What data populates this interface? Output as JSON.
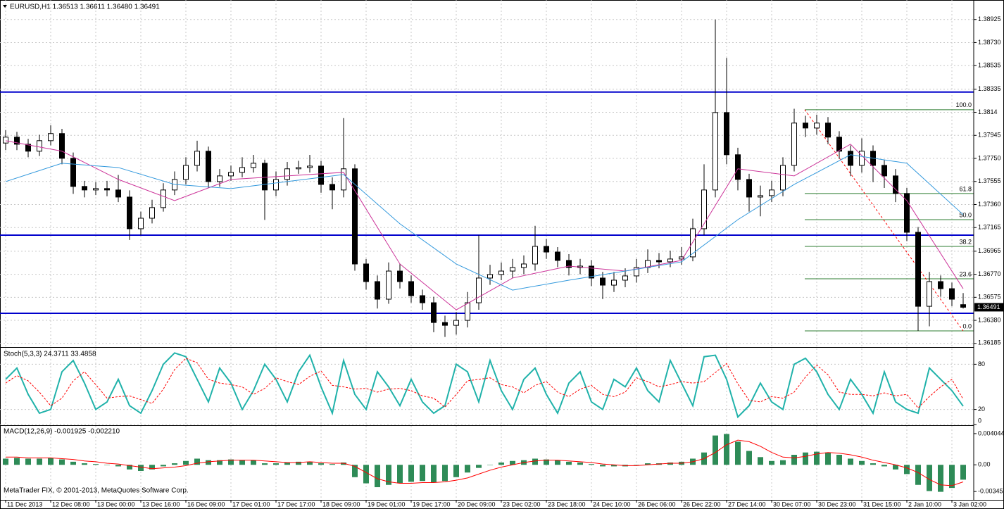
{
  "chart_data": [
    {
      "type": "candlestick",
      "title": "EURUSD,H1  1.36513 1.36611 1.36480 1.36491",
      "categories": [
        "11 Dec 2013",
        null,
        null,
        null,
        "12 Dec 08:00",
        null,
        null,
        null,
        "13 Dec 00:00",
        null,
        null,
        null,
        "13 Dec 16:00",
        null,
        null,
        null,
        "16 Dec 09:00",
        null,
        null,
        null,
        "17 Dec 01:00",
        null,
        null,
        null,
        "17 Dec 17:00",
        null,
        null,
        null,
        "18 Dec 09:00",
        null,
        null,
        null,
        "19 Dec 01:00",
        null,
        null,
        null,
        "19 Dec 17:00",
        null,
        null,
        null,
        "20 Dec 09:00",
        null,
        null,
        null,
        "23 Dec 02:00",
        null,
        null,
        null,
        "23 Dec 18:00",
        null,
        null,
        null,
        "24 Dec 10:00",
        null,
        null,
        null,
        "26 Dec 06:00",
        null,
        null,
        null,
        "26 Dec 22:00",
        null,
        null,
        null,
        "27 Dec 14:00",
        null,
        null,
        null,
        "30 Dec 07:00",
        null,
        null,
        null,
        "30 Dec 23:00",
        null,
        null,
        null,
        "31 Dec 15:00",
        null,
        null,
        null,
        "2 Jan 10:00",
        null,
        null,
        null,
        "3 Jan 02:00",
        null
      ],
      "open": [
        1.3788,
        1.3793,
        1.3787,
        1.37811,
        1.379,
        1.3796,
        1.37751,
        1.37513,
        1.37483,
        1.37495,
        1.37483,
        1.37423,
        1.37155,
        1.37244,
        1.37334,
        1.37483,
        1.37572,
        1.37691,
        1.37811,
        1.37554,
        1.37602,
        1.37632,
        1.37673,
        1.37709,
        1.37483,
        1.37572,
        1.37662,
        1.37673,
        1.37685,
        1.3753,
        1.37483,
        1.37662,
        1.36857,
        1.36708,
        1.36559,
        1.36797,
        1.36708,
        1.36589,
        1.36529,
        1.36362,
        1.36338,
        1.3638,
        1.36529,
        1.36738,
        1.36768,
        1.36797,
        1.36827,
        1.36857,
        1.37006,
        1.36958,
        1.36887,
        1.36827,
        1.36839,
        1.36738,
        1.36678,
        1.3672,
        1.36756,
        1.36827,
        1.36887,
        1.36875,
        1.36899,
        1.36917,
        1.37155,
        1.37483,
        1.38138,
        1.37781,
        1.37572,
        1.37423,
        1.37435,
        1.37483,
        1.37691,
        1.38049,
        1.38007,
        1.38049,
        1.3793,
        1.37811,
        1.37691,
        1.37811,
        1.37691,
        1.37602,
        1.37453,
        1.37125,
        1.36499,
        1.36708,
        1.36648,
        1.36513
      ],
      "high": [
        1.3799,
        1.37975,
        1.37915,
        1.3795,
        1.3803,
        1.38,
        1.378,
        1.3756,
        1.3755,
        1.3756,
        1.3761,
        1.3748,
        1.373,
        1.374,
        1.3754,
        1.3764,
        1.3776,
        1.379,
        1.3785,
        1.3766,
        1.3769,
        1.3776,
        1.3778,
        1.3774,
        1.3764,
        1.3772,
        1.3773,
        1.3778,
        1.3773,
        1.3759,
        1.38091,
        1.377,
        1.369,
        1.3676,
        1.3687,
        1.3686,
        1.3676,
        1.3664,
        1.3658,
        1.3642,
        1.3645,
        1.3662,
        1.371,
        1.3685,
        1.3687,
        1.369,
        1.3693,
        1.3718,
        1.3707,
        1.37,
        1.3694,
        1.369,
        1.3689,
        1.3679,
        1.3679,
        1.3682,
        1.369,
        1.3698,
        1.3695,
        1.3697,
        1.37,
        1.3724,
        1.377,
        1.38925,
        1.386,
        1.3784,
        1.3762,
        1.3752,
        1.3756,
        1.3776,
        1.3817,
        1.3811,
        1.3812,
        1.381,
        1.3798,
        1.3786,
        1.3792,
        1.3786,
        1.3774,
        1.3766,
        1.375,
        1.3717,
        1.3679,
        1.3676,
        1.367,
        1.36611
      ],
      "low": [
        1.3782,
        1.3782,
        1.3776,
        1.3777,
        1.3786,
        1.377,
        1.3745,
        1.3742,
        1.3744,
        1.3743,
        1.3738,
        1.3706,
        1.371,
        1.372,
        1.373,
        1.3744,
        1.3753,
        1.3764,
        1.375,
        1.3751,
        1.3756,
        1.3759,
        1.3763,
        1.3723,
        1.3743,
        1.3752,
        1.3762,
        1.3763,
        1.3746,
        1.3732,
        1.3742,
        1.368,
        1.3664,
        1.3648,
        1.3652,
        1.3665,
        1.3653,
        1.3647,
        1.3628,
        1.3624,
        1.3626,
        1.3632,
        1.3647,
        1.3668,
        1.3672,
        1.3674,
        1.3677,
        1.368,
        1.369,
        1.3683,
        1.3676,
        1.3677,
        1.3667,
        1.3656,
        1.3662,
        1.3666,
        1.367,
        1.3678,
        1.3682,
        1.3683,
        1.3685,
        1.3688,
        1.371,
        1.3742,
        1.377,
        1.3748,
        1.373,
        1.3726,
        1.3738,
        1.3743,
        1.3764,
        1.3793,
        1.3795,
        1.3787,
        1.3775,
        1.376,
        1.3763,
        1.3755,
        1.375,
        1.3738,
        1.3705,
        1.36291,
        1.3633,
        1.3658,
        1.365,
        1.3648
      ],
      "close": [
        1.3793,
        1.3787,
        1.37811,
        1.379,
        1.3796,
        1.37751,
        1.37513,
        1.37483,
        1.37495,
        1.37483,
        1.37423,
        1.37155,
        1.37244,
        1.37334,
        1.37483,
        1.37572,
        1.37691,
        1.37811,
        1.37554,
        1.37602,
        1.37632,
        1.37673,
        1.37709,
        1.37483,
        1.37572,
        1.37662,
        1.37673,
        1.37685,
        1.3753,
        1.37483,
        1.37662,
        1.36857,
        1.36708,
        1.36559,
        1.36797,
        1.36708,
        1.36589,
        1.36529,
        1.36362,
        1.36338,
        1.3638,
        1.36529,
        1.36738,
        1.36768,
        1.36797,
        1.36827,
        1.36857,
        1.37006,
        1.36958,
        1.36887,
        1.36827,
        1.36839,
        1.36738,
        1.36678,
        1.3672,
        1.36756,
        1.36827,
        1.36887,
        1.36875,
        1.36899,
        1.36917,
        1.37155,
        1.37483,
        1.38138,
        1.37781,
        1.37572,
        1.37423,
        1.37435,
        1.37483,
        1.37691,
        1.38049,
        1.38007,
        1.38049,
        1.3793,
        1.37811,
        1.37691,
        1.37811,
        1.37691,
        1.37602,
        1.37453,
        1.37125,
        1.36499,
        1.36708,
        1.36648,
        1.36559,
        1.36491
      ],
      "up_color": "#ffffff",
      "down_color": "#000000",
      "wick_color": "#000000",
      "ma": [
        {
          "color": "#cc3399",
          "x": [
            0,
            5,
            10,
            15,
            20,
            25,
            30,
            35,
            40,
            45,
            50,
            55,
            60,
            65,
            70,
            75,
            80,
            85
          ],
          "values": [
            1.379,
            1.37811,
            1.37572,
            1.37393,
            1.37572,
            1.37602,
            1.37632,
            1.36857,
            1.36469,
            1.36738,
            1.36839,
            1.36797,
            1.36887,
            1.37662,
            1.37602,
            1.3787,
            1.37393,
            1.36648
          ]
        },
        {
          "color": "#3399dd",
          "x": [
            0,
            5,
            10,
            15,
            20,
            25,
            30,
            35,
            40,
            45,
            50,
            55,
            60,
            65,
            70,
            75,
            80,
            85
          ],
          "values": [
            1.37554,
            1.37709,
            1.37673,
            1.3753,
            1.37495,
            1.37554,
            1.37614,
            1.37197,
            1.36857,
            1.36636,
            1.3672,
            1.36797,
            1.36875,
            1.37232,
            1.3753,
            1.37781,
            1.37709,
            1.37274
          ]
        }
      ],
      "hlines": {
        "color": "#0000cc",
        "values": [
          1.38311,
          1.37101,
          1.3644
        ]
      },
      "fibo": {
        "color": "#2e7d32",
        "trend_color": "#ff0000",
        "levels": [
          {
            "label": "100.0",
            "price": 1.38162
          },
          {
            "label": "61.8",
            "price": 1.37453
          },
          {
            "label": "50.0",
            "price": 1.37232
          },
          {
            "label": "38.2",
            "price": 1.37006
          },
          {
            "label": "23.6",
            "price": 1.36732
          },
          {
            "label": "0.0",
            "price": 1.36291
          }
        ]
      },
      "ylim": [
        1.3616,
        1.3909
      ],
      "yticks": [
        1.38925,
        {
          "value": 1.3873,
          "label": "1.38730"
        },
        1.38535,
        1.38335,
        1.3814,
        1.37945,
        {
          "value": 1.3775,
          "label": "1.37750"
        },
        1.37555,
        {
          "value": 1.3736,
          "label": "1.37360"
        },
        1.37165,
        1.36965,
        {
          "value": 1.3677,
          "label": "1.36770"
        },
        1.36575,
        {
          "value": 1.3638,
          "label": "1.36380"
        },
        1.36185
      ],
      "grid": true
    },
    {
      "type": "line",
      "title": "Stoch(5,3,3) 24.3711 33.4858",
      "series": [
        {
          "color": "#20b2aa",
          "dash": false,
          "values": [
            60,
            75,
            40,
            15,
            20,
            70,
            85,
            55,
            20,
            30,
            60,
            25,
            15,
            45,
            80,
            95,
            90,
            60,
            30,
            75,
            55,
            20,
            45,
            80,
            60,
            30,
            70,
            92,
            50,
            15,
            85,
            40,
            20,
            70,
            50,
            25,
            60,
            30,
            15,
            25,
            80,
            70,
            30,
            85,
            45,
            20,
            60,
            75,
            40,
            15,
            55,
            70,
            30,
            20,
            60,
            50,
            75,
            45,
            30,
            85,
            55,
            25,
            90,
            92,
            60,
            10,
            25,
            55,
            30,
            20,
            80,
            88,
            70,
            40,
            20,
            60,
            40,
            15,
            70,
            30,
            20,
            15,
            75,
            60,
            45,
            24.3711
          ]
        },
        {
          "color": "#ff0000",
          "dash": true,
          "values": [
            55,
            65,
            58,
            43,
            25,
            35,
            58,
            70,
            53,
            35,
            37,
            38,
            33,
            28,
            47,
            73,
            88,
            82,
            60,
            55,
            53,
            50,
            40,
            48,
            62,
            57,
            53,
            64,
            71,
            52,
            50,
            47,
            48,
            43,
            47,
            48,
            45,
            38,
            35,
            23,
            40,
            58,
            60,
            62,
            53,
            50,
            42,
            52,
            57,
            43,
            37,
            47,
            52,
            40,
            37,
            43,
            62,
            57,
            50,
            53,
            57,
            55,
            57,
            69,
            81,
            54,
            32,
            30,
            37,
            35,
            43,
            63,
            79,
            66,
            43,
            40,
            40,
            38,
            42,
            38,
            40,
            22,
            37,
            50,
            60,
            33.4858
          ]
        }
      ],
      "ylim": [
        0,
        100
      ],
      "yticks": [
        0,
        20,
        80
      ],
      "grid": true
    },
    {
      "type": "bar",
      "title": "MACD(12,26,9) -0.001925 -0.002210",
      "color": "#2e8b57",
      "values": [
        0.0008,
        0.0009,
        0.0008,
        0.0008,
        0.0009,
        0.0007,
        0.0004,
        0.0002,
        0.0001,
        0.0,
        -0.0002,
        -0.0006,
        -0.0008,
        -0.0006,
        -0.0002,
        0.0002,
        0.0005,
        0.0008,
        0.0006,
        0.0006,
        0.0007,
        0.0006,
        0.0006,
        0.0002,
        0.0002,
        0.0003,
        0.0004,
        0.0004,
        0.0002,
        0.0001,
        0.0003,
        -0.0016,
        -0.0024,
        -0.0029,
        -0.0026,
        -0.0024,
        -0.0022,
        -0.0021,
        -0.0023,
        -0.0021,
        -0.0016,
        -0.001,
        -0.0004,
        0.0,
        0.0003,
        0.0005,
        0.0006,
        0.0008,
        0.0007,
        0.0006,
        0.0004,
        0.0003,
        0.0001,
        -0.0002,
        -0.0002,
        -0.0002,
        0.0,
        0.0002,
        0.0002,
        0.0003,
        0.0004,
        0.0008,
        0.0016,
        0.0038,
        0.004,
        0.003,
        0.0018,
        0.001,
        0.0005,
        0.0006,
        0.0013,
        0.0016,
        0.0017,
        0.0016,
        0.0013,
        0.0008,
        0.0005,
        0.0002,
        -0.0002,
        -0.0006,
        -0.0012,
        -0.0026,
        -0.0034,
        -0.0035,
        -0.003,
        -0.001925
      ],
      "signal": {
        "color": "#ff0000",
        "values": [
          0.001,
          0.001,
          0.0009,
          0.0009,
          0.0009,
          0.0008,
          0.0007,
          0.0005,
          0.0004,
          0.0002,
          0.0001,
          -0.0001,
          -0.0003,
          -0.0005,
          -0.0004,
          -0.0003,
          -0.0001,
          0.0002,
          0.0004,
          0.0005,
          0.0006,
          0.0006,
          0.0006,
          0.0005,
          0.0004,
          0.0003,
          0.0003,
          0.0004,
          0.0003,
          0.0002,
          0.0002,
          -0.0002,
          -0.001,
          -0.0018,
          -0.0022,
          -0.0024,
          -0.0024,
          -0.0023,
          -0.0023,
          -0.0022,
          -0.002,
          -0.0017,
          -0.0012,
          -0.0007,
          -0.0003,
          0.0,
          0.0003,
          0.0005,
          0.0006,
          0.0006,
          0.0005,
          0.0004,
          0.0003,
          0.0001,
          0.0,
          -0.0001,
          -0.0001,
          0.0,
          0.0001,
          0.0002,
          0.0002,
          0.0004,
          0.0008,
          0.0016,
          0.0026,
          0.0032,
          0.003,
          0.0024,
          0.0016,
          0.001,
          0.0009,
          0.0011,
          0.0014,
          0.0016,
          0.0015,
          0.0013,
          0.001,
          0.0006,
          0.0003,
          0.0,
          -0.0004,
          -0.001,
          -0.0019,
          -0.0026,
          -0.0027,
          -0.00221
        ]
      },
      "ylim": [
        -0.00454,
        0.00495
      ],
      "yticks": [
        0.004044,
        {
          "value": 0,
          "label": "0.00"
        },
        -0.003457
      ],
      "footer": "MetaTrader FIX, © 2001-2013, MetaQuotes Software Corp."
    }
  ]
}
